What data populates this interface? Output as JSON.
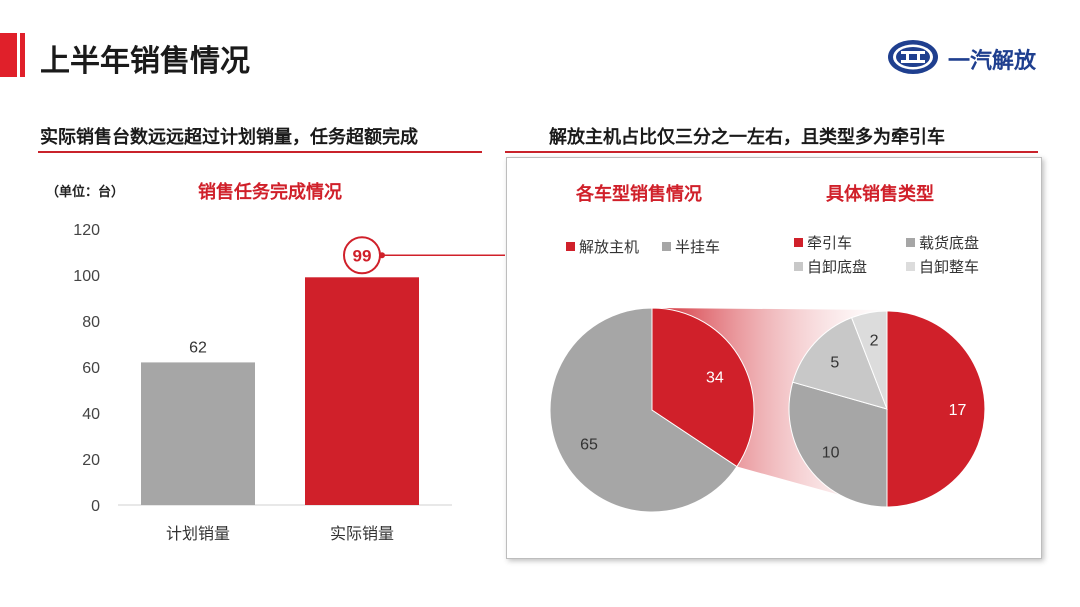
{
  "header": {
    "title": "上半年销售情况",
    "logo_text": "一汽解放"
  },
  "left_section": {
    "heading": "实际销售台数远远超过计划销量，任务超额完成",
    "unit": "（单位：台）",
    "chart_title": "销售任务完成情况"
  },
  "right_section": {
    "heading": "解放主机占比仅三分之一左右，且类型多为牵引车",
    "pie1_title": "各车型销售情况",
    "pie2_title": "具体销售类型"
  },
  "colors": {
    "accent": "#d0202a",
    "gray": "#a6a6a6",
    "light_gray": "#c8c8c8",
    "lighter_gray": "#dcdcdc"
  },
  "chart_data": [
    {
      "type": "bar",
      "title": "销售任务完成情况",
      "categories": [
        "计划销量",
        "实际销量"
      ],
      "values": [
        62,
        99
      ],
      "ylim": [
        0,
        120
      ],
      "yticks": [
        "0",
        "20",
        "40",
        "60",
        "80",
        "100",
        "120"
      ],
      "ylabel": "（单位：台）",
      "highlight_label": "99",
      "data_labels": [
        "62",
        "99"
      ],
      "grid": false
    },
    {
      "type": "pie",
      "title": "各车型销售情况",
      "labels": [
        "解放主机",
        "半挂车"
      ],
      "values": [
        34,
        65
      ],
      "legend": "top-left"
    },
    {
      "type": "pie",
      "title": "具体销售类型",
      "labels": [
        "牵引车",
        "载货底盘",
        "自卸底盘",
        "自卸整车"
      ],
      "values": [
        17,
        10,
        5,
        2
      ],
      "legend": "top"
    }
  ]
}
